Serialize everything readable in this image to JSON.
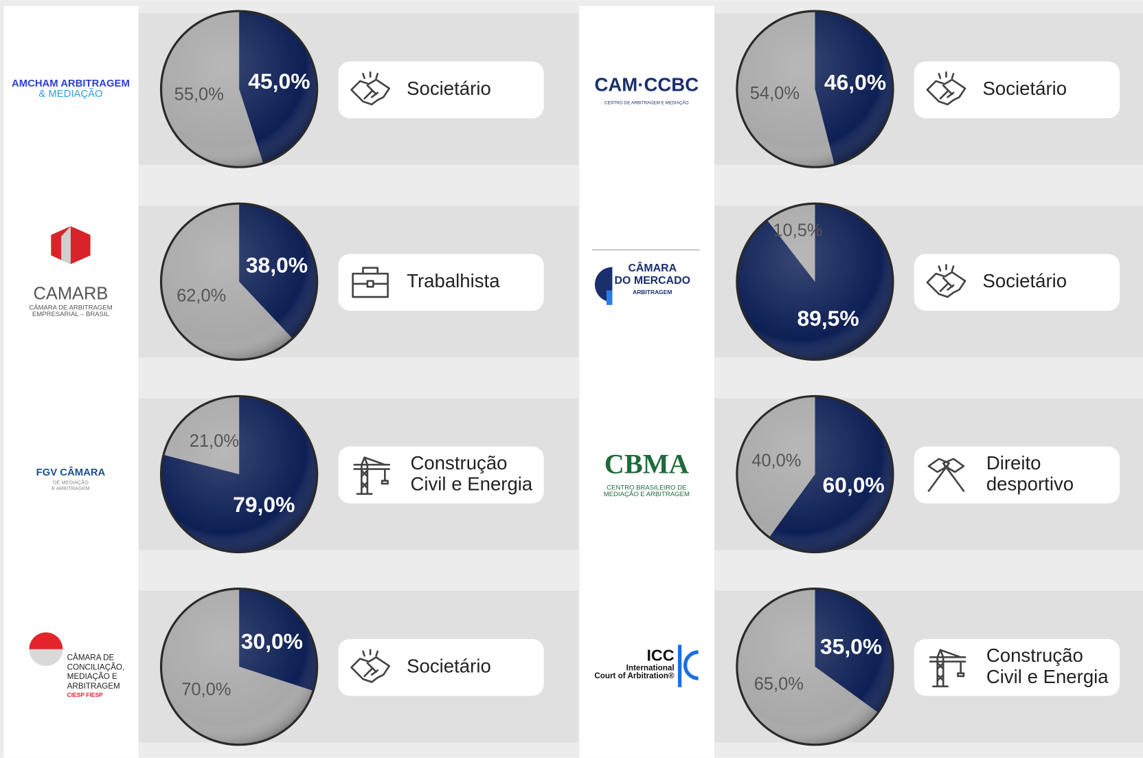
{
  "chart_data": [
    {
      "type": "pie",
      "title": [
        "AMCHAM ARBITRAGEM",
        "& MEDIAÇÃO"
      ],
      "subtitle": [
        "Societário"
      ],
      "values": [
        45,
        55
      ],
      "value_labels": [
        "45,0%",
        "55,0%"
      ],
      "colors": [
        "#0d1f54",
        "#a8a8a8"
      ]
    },
    {
      "type": "pie",
      "title": [
        "CAMARB",
        "CÂMARA DE ARBITRAGEM",
        "EMPRESARIAL – BRASIL"
      ],
      "subtitle": [
        "Trabalhista"
      ],
      "values": [
        38,
        62
      ],
      "value_labels": [
        "38,0%",
        "62,0%"
      ],
      "colors": [
        "#0d1f54",
        "#a8a8a8"
      ]
    },
    {
      "type": "pie",
      "title": [
        "FGV CÂMARA",
        "DE MEDIAÇÃO",
        "E ARBITRAGEM"
      ],
      "subtitle": [
        "Construção",
        "Civil e Energia"
      ],
      "values": [
        79,
        21
      ],
      "value_labels": [
        "79,0%",
        "21,0%"
      ],
      "colors": [
        "#0d1f54",
        "#a8a8a8"
      ]
    },
    {
      "type": "pie",
      "title": [
        "CÂMARA DE",
        "CONCILIAÇÃO,",
        "MEDIAÇÃO E",
        "ARBITRAGEM",
        "CIESP FIESP"
      ],
      "subtitle": [
        "Societário"
      ],
      "values": [
        30,
        70
      ],
      "value_labels": [
        "30,0%",
        "70,0%"
      ],
      "colors": [
        "#0d1f54",
        "#a8a8a8"
      ]
    },
    {
      "type": "pie",
      "title": [
        "CAM·CCBC",
        "CENTRO DE ARBITRAGEM E MEDIAÇÃO"
      ],
      "subtitle": [
        "Societário"
      ],
      "values": [
        46,
        54
      ],
      "value_labels": [
        "46,0%",
        "54,0%"
      ],
      "colors": [
        "#0d1f54",
        "#a8a8a8"
      ]
    },
    {
      "type": "pie",
      "title": [
        "CÂMARA",
        "DO MERCADO",
        "ARBITRAGEM"
      ],
      "subtitle": [
        "Societário"
      ],
      "values": [
        89.5,
        10.5
      ],
      "value_labels": [
        "89,5%",
        "10,5%"
      ],
      "colors": [
        "#0d1f54",
        "#a8a8a8"
      ]
    },
    {
      "type": "pie",
      "title": [
        "CBMA",
        "CENTRO BRASILEIRO DE",
        "MEDIAÇÃO E ARBITRAGEM"
      ],
      "subtitle": [
        "Direito",
        "desportivo"
      ],
      "values": [
        60,
        40
      ],
      "value_labels": [
        "60,0%",
        "40,0%"
      ],
      "colors": [
        "#0d1f54",
        "#a8a8a8"
      ]
    },
    {
      "type": "pie",
      "title": [
        "ICC",
        "International",
        "Court of Arbitration®"
      ],
      "subtitle": [
        "Construção",
        "Civil e Energia"
      ],
      "values": [
        35,
        65
      ],
      "value_labels": [
        "35,0%",
        "65,0%"
      ],
      "colors": [
        "#0d1f54",
        "#a8a8a8"
      ]
    }
  ]
}
